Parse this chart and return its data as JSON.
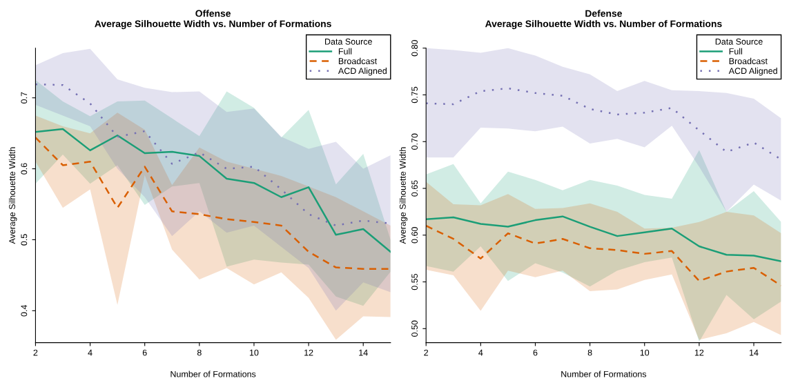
{
  "chart_data": [
    {
      "type": "line",
      "title": "Offense\nAverage Silhouette Width vs. Number of Formations",
      "xlabel": "Number of Formations",
      "ylabel": "Average Silhouette Width",
      "legend_title": "Data Source",
      "legend": "top right",
      "grid": false,
      "x": [
        2,
        3,
        4,
        5,
        6,
        7,
        8,
        9,
        10,
        11,
        12,
        13,
        14,
        15
      ],
      "xlim": [
        2,
        15
      ],
      "xticks": [
        2,
        4,
        6,
        8,
        10,
        12,
        14
      ],
      "ylim": [
        0.355,
        0.77
      ],
      "yticks": [
        0.4,
        0.5,
        0.6,
        0.7
      ],
      "series": [
        {
          "name": "Full",
          "color": "#1b9e77",
          "line_style": "solid",
          "values": [
            0.652,
            0.656,
            0.626,
            0.647,
            0.622,
            0.624,
            0.618,
            0.586,
            0.58,
            0.56,
            0.574,
            0.507,
            0.515,
            0.483
          ],
          "lower": [
            0.579,
            0.62,
            0.579,
            0.605,
            0.549,
            0.575,
            0.58,
            0.462,
            0.472,
            0.468,
            0.465,
            0.42,
            0.407,
            0.455
          ],
          "upper": [
            0.725,
            0.695,
            0.674,
            0.695,
            0.696,
            0.671,
            0.646,
            0.709,
            0.686,
            0.644,
            0.683,
            0.578,
            0.621,
            0.5
          ]
        },
        {
          "name": "Broadcast",
          "color": "#d95f02",
          "line_style": "dashed",
          "values": [
            0.644,
            0.605,
            0.61,
            0.545,
            0.603,
            0.54,
            0.536,
            0.529,
            0.525,
            0.52,
            0.483,
            0.461,
            0.459,
            0.459
          ],
          "lower": [
            0.61,
            0.545,
            0.571,
            0.408,
            0.591,
            0.486,
            0.444,
            0.46,
            0.437,
            0.454,
            0.418,
            0.359,
            0.392,
            0.391
          ],
          "upper": [
            0.675,
            0.66,
            0.65,
            0.679,
            0.655,
            0.577,
            0.63,
            0.61,
            0.6,
            0.59,
            0.575,
            0.56,
            0.54,
            0.52
          ]
        },
        {
          "name": "ACD Aligned",
          "color": "#7570b3",
          "line_style": "dotted",
          "values": [
            0.719,
            0.718,
            0.692,
            0.645,
            0.653,
            0.607,
            0.623,
            0.6,
            0.603,
            0.571,
            0.536,
            0.52,
            0.527,
            0.523
          ],
          "lower": [
            0.69,
            0.675,
            0.66,
            0.6,
            0.56,
            0.505,
            0.54,
            0.51,
            0.52,
            0.49,
            0.46,
            0.4,
            0.44,
            0.426
          ],
          "upper": [
            0.746,
            0.763,
            0.769,
            0.726,
            0.714,
            0.708,
            0.709,
            0.68,
            0.685,
            0.645,
            0.628,
            0.638,
            0.6,
            0.619
          ]
        }
      ]
    },
    {
      "type": "line",
      "title": "Defense\nAverage Silhouette Width vs. Number of Formations",
      "xlabel": "Number of Formations",
      "ylabel": "Average Silhouette Width",
      "legend_title": "Data Source",
      "legend": "top right",
      "grid": false,
      "x": [
        2,
        3,
        4,
        5,
        6,
        7,
        8,
        9,
        10,
        11,
        12,
        13,
        14,
        15
      ],
      "xlim": [
        2,
        15
      ],
      "xticks": [
        2,
        4,
        6,
        8,
        10,
        12,
        14
      ],
      "ylim": [
        0.485,
        0.8
      ],
      "yticks": [
        {
          "value": 0.5,
          "label": "0.50"
        },
        {
          "value": 0.55,
          "label": "0.55"
        },
        {
          "value": 0.6,
          "label": "0.60"
        },
        {
          "value": 0.65,
          "label": "0.65"
        },
        {
          "value": 0.7,
          "label": "0.70"
        },
        {
          "value": 0.75,
          "label": "0.75"
        },
        {
          "value": 0.8,
          "label": "0.80"
        }
      ],
      "series": [
        {
          "name": "Full",
          "color": "#1b9e77",
          "line_style": "solid",
          "values": [
            0.617,
            0.619,
            0.612,
            0.609,
            0.616,
            0.62,
            0.609,
            0.599,
            0.603,
            0.607,
            0.588,
            0.579,
            0.578,
            0.572
          ],
          "lower": [
            0.567,
            0.561,
            0.588,
            0.551,
            0.57,
            0.56,
            0.545,
            0.562,
            0.571,
            0.576,
            0.486,
            0.536,
            0.51,
            0.529
          ],
          "upper": [
            0.665,
            0.676,
            0.634,
            0.668,
            0.659,
            0.648,
            0.659,
            0.653,
            0.643,
            0.639,
            0.691,
            0.625,
            0.647,
            0.614
          ]
        },
        {
          "name": "Broadcast",
          "color": "#d95f02",
          "line_style": "dashed",
          "values": [
            0.61,
            0.596,
            0.575,
            0.602,
            0.591,
            0.596,
            0.586,
            0.584,
            0.58,
            0.583,
            0.551,
            0.561,
            0.565,
            0.546
          ],
          "lower": [
            0.563,
            0.557,
            0.519,
            0.562,
            0.555,
            0.562,
            0.54,
            0.542,
            0.552,
            0.558,
            0.488,
            0.495,
            0.507,
            0.493
          ],
          "upper": [
            0.657,
            0.633,
            0.632,
            0.644,
            0.628,
            0.629,
            0.634,
            0.625,
            0.607,
            0.608,
            0.614,
            0.625,
            0.621,
            0.602
          ]
        },
        {
          "name": "ACD Aligned",
          "color": "#7570b3",
          "line_style": "dotted",
          "values": [
            0.741,
            0.74,
            0.754,
            0.757,
            0.752,
            0.749,
            0.735,
            0.729,
            0.731,
            0.736,
            0.712,
            0.689,
            0.699,
            0.681
          ],
          "lower": [
            0.683,
            0.683,
            0.715,
            0.714,
            0.711,
            0.716,
            0.698,
            0.703,
            0.694,
            0.717,
            0.673,
            0.625,
            0.654,
            0.637
          ],
          "upper": [
            0.8,
            0.798,
            0.795,
            0.8,
            0.792,
            0.78,
            0.772,
            0.754,
            0.765,
            0.755,
            0.754,
            0.752,
            0.746,
            0.725
          ]
        }
      ]
    }
  ]
}
